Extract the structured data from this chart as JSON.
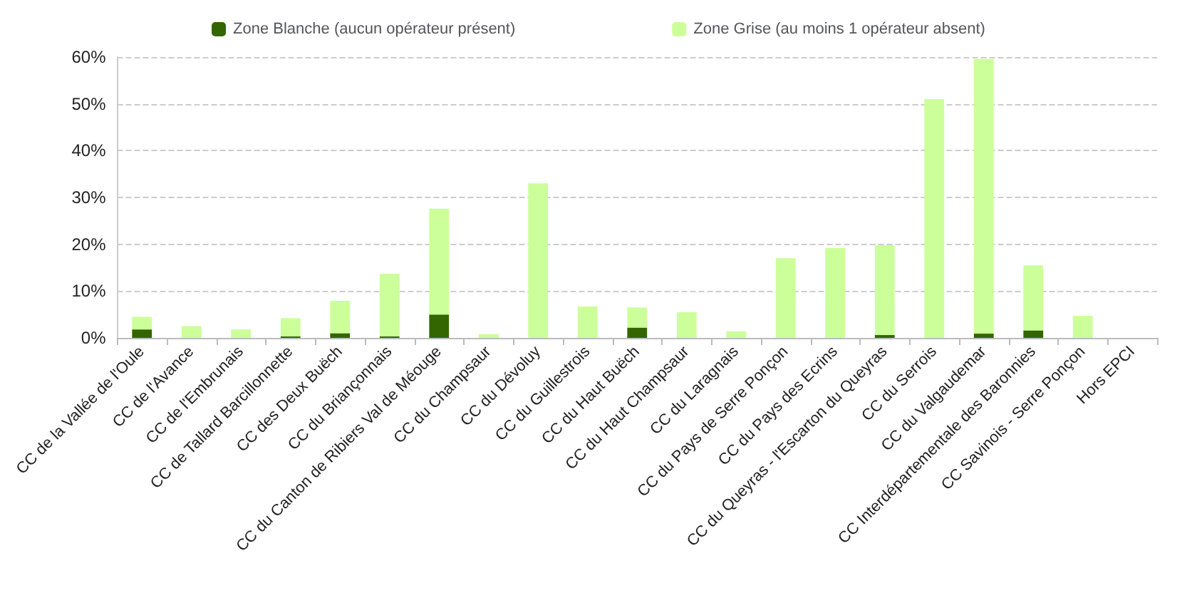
{
  "chart_data": {
    "type": "bar",
    "stacked": true,
    "categories": [
      "CC de la Vallée de l'Oule",
      "CC de l'Avance",
      "CC de l'Embrunais",
      "CC de Tallard Barcillonnette",
      "CC des Deux Buëch",
      "CC du Briançonnais",
      "CC du Canton de Ribiers Val de Méouge",
      "CC du Champsaur",
      "CC du Dévoluy",
      "CC du Guillestrois",
      "CC du Haut Buëch",
      "CC du Haut Champsaur",
      "CC du Laragnais",
      "CC du Pays de Serre Ponçon",
      "CC du Pays des Ecrins",
      "CC du Queyras - l'Escarton du Queyras",
      "CC du Serrois",
      "CC du Valgaudemar",
      "CC Interdépartementale des Baronnies",
      "CC Savinois - Serre Ponçon",
      "Hors EPCI"
    ],
    "series": [
      {
        "name": "Zone Blanche (aucun opérateur présent)",
        "color": "#336600",
        "values": [
          1.8,
          0,
          0,
          0.3,
          1.0,
          0.3,
          5.0,
          0,
          0,
          0,
          2.2,
          0,
          0,
          0,
          0,
          0.6,
          0,
          0.9,
          1.6,
          0,
          0
        ]
      },
      {
        "name": "Zone Grise (au moins 1 opérateur absent)",
        "color": "#ccff99",
        "values": [
          2.7,
          2.5,
          1.8,
          3.9,
          6.9,
          13.4,
          22.6,
          0.8,
          33,
          6.7,
          4.3,
          5.5,
          1.4,
          17,
          19.2,
          19.2,
          51,
          58.7,
          13.9,
          4.7,
          0
        ]
      }
    ],
    "ylim": [
      0,
      60
    ],
    "yticks": [
      {
        "value": 0,
        "label": "0%"
      },
      {
        "value": 10,
        "label": "10%"
      },
      {
        "value": 20,
        "label": "20%"
      },
      {
        "value": 30,
        "label": "30%"
      },
      {
        "value": 40,
        "label": "40%"
      },
      {
        "value": 50,
        "label": "50%"
      },
      {
        "value": 60,
        "label": "60%"
      }
    ],
    "grid": "y",
    "legend": "top"
  }
}
